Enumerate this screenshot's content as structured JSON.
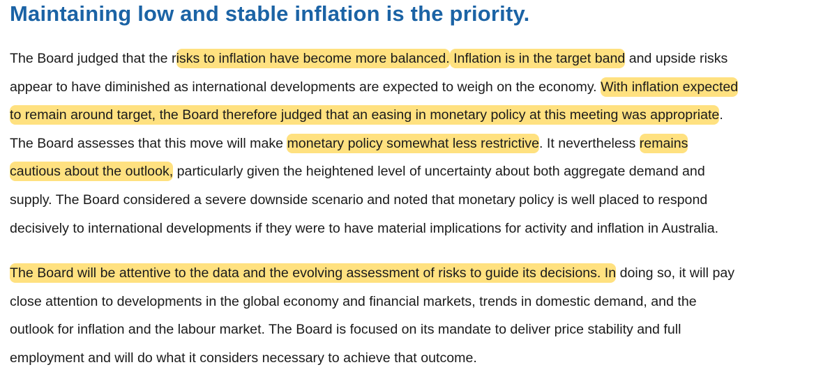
{
  "heading": "Maintaining low and stable inflation is the priority.",
  "highlight_color": "rgba(255, 206, 50, 0.62)",
  "paragraphs": [
    {
      "lines": [
        [
          {
            "text": "The Board judged that the r",
            "highlight": false
          },
          {
            "text": "isks to inflation have become more balanced.",
            "highlight": true
          },
          {
            "text": " Inflation is in the target band",
            "highlight": true
          },
          {
            "text": " and upside risks",
            "highlight": false
          }
        ],
        [
          {
            "text": "appear to have diminished as international developments are expected to weigh on the economy. ",
            "highlight": false
          },
          {
            "text": "With inflation expected",
            "highlight": true
          }
        ],
        [
          {
            "text": "to remain around target, the Board therefore judged that an easing in monetary policy at this meeting was appropriate",
            "highlight": true
          },
          {
            "text": ".",
            "highlight": false
          }
        ],
        [
          {
            "text": "The Board assesses that this move will make ",
            "highlight": false
          },
          {
            "text": "monetary policy somewhat less restrictive",
            "highlight": true
          },
          {
            "text": ". It nevertheless ",
            "highlight": false
          },
          {
            "text": "remains",
            "highlight": true
          }
        ],
        [
          {
            "text": "cautious about the outlook,",
            "highlight": true
          },
          {
            "text": " particularly given the heightened level of uncertainty about both aggregate demand and",
            "highlight": false
          }
        ],
        [
          {
            "text": "supply. The Board considered a severe downside scenario and noted that monetary policy is well placed to respond",
            "highlight": false
          }
        ],
        [
          {
            "text": "decisively to international developments if they were to have material implications for activity and inflation in Australia.",
            "highlight": false
          }
        ]
      ]
    },
    {
      "lines": [
        [
          {
            "text": "The Board will be attentive to the data and the evolving assessment of risks to guide its decisions. In",
            "highlight": true
          },
          {
            "text": " doing so, it will pay",
            "highlight": false
          }
        ],
        [
          {
            "text": "close attention to developments in the global economy and financial markets, trends in domestic demand, and the",
            "highlight": false
          }
        ],
        [
          {
            "text": "outlook for inflation and the labour market. The Board is focused on its mandate to deliver price stability and full",
            "highlight": false
          }
        ],
        [
          {
            "text": "employment and will do what it considers necessary to achieve that outcome.",
            "highlight": false
          }
        ]
      ]
    }
  ]
}
